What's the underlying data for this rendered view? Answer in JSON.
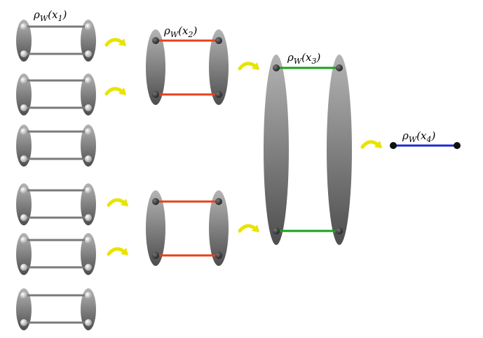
{
  "labels": [
    [
      "ρ",
      "W",
      "(x",
      "1",
      ")"
    ],
    [
      "ρ",
      "W",
      "(x",
      "2",
      ")"
    ],
    [
      "ρ",
      "W",
      "(x",
      "3",
      ")"
    ],
    [
      "ρ",
      "W",
      "(x",
      "4",
      ")"
    ]
  ]
}
